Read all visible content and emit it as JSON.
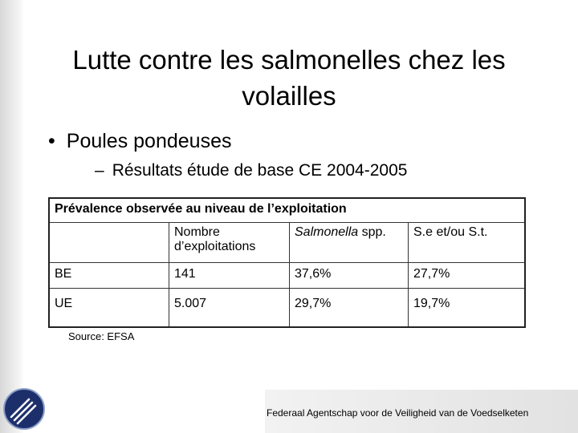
{
  "title": "Lutte contre les salmonelles chez les volailles",
  "bullet": "Poules pondeuses",
  "sub_bullet": "Résultats étude de base CE 2004-2005",
  "table": {
    "caption": "Prévalence observée au niveau de l’exploitation",
    "header": {
      "col1": "Nombre d’exploitations",
      "col2_italic": "Salmonella",
      "col2_rest": "spp.",
      "col3": "S.e et/ou S.t."
    },
    "rows": [
      [
        "BE",
        "141",
        "37,6%",
        "27,7%"
      ],
      [
        "UE",
        "5.007",
        "29,7%",
        "19,7%"
      ]
    ]
  },
  "source": "Source: EFSA",
  "footer": "Federaal Agentschap voor de Veiligheid van de Voedselketen"
}
